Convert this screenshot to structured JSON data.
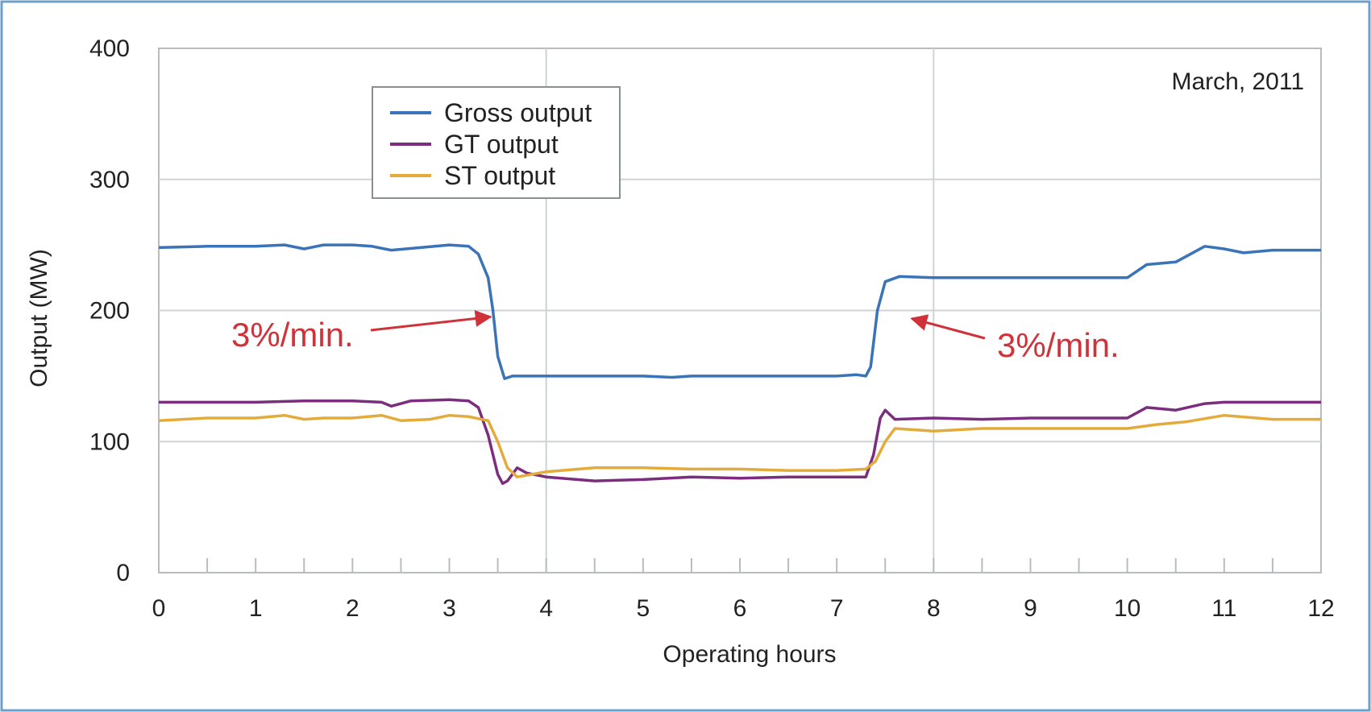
{
  "chart_data": {
    "type": "line",
    "title": "",
    "note": "March, 2011",
    "xlabel": "Operating hours",
    "ylabel": "Output (MW)",
    "xlim": [
      0,
      12
    ],
    "ylim": [
      0,
      400
    ],
    "xticks": [
      "0",
      "1",
      "2",
      "3",
      "4",
      "5",
      "6",
      "7",
      "8",
      "9",
      "10",
      "11",
      "12"
    ],
    "yticks": [
      "0",
      "100",
      "200",
      "300",
      "400"
    ],
    "grid": true,
    "legend_position": "upper-left",
    "series": [
      {
        "name": "Gross output",
        "color": "#3a73b7",
        "points": [
          [
            0,
            248
          ],
          [
            0.5,
            249
          ],
          [
            1,
            249
          ],
          [
            1.3,
            250
          ],
          [
            1.5,
            247
          ],
          [
            1.7,
            250
          ],
          [
            2,
            250
          ],
          [
            2.2,
            249
          ],
          [
            2.4,
            246
          ],
          [
            2.7,
            248
          ],
          [
            3,
            250
          ],
          [
            3.2,
            249
          ],
          [
            3.3,
            243
          ],
          [
            3.4,
            225
          ],
          [
            3.45,
            200
          ],
          [
            3.5,
            165
          ],
          [
            3.57,
            148
          ],
          [
            3.65,
            150
          ],
          [
            4,
            150
          ],
          [
            5,
            150
          ],
          [
            5.3,
            149
          ],
          [
            5.5,
            150
          ],
          [
            6,
            150
          ],
          [
            6.5,
            150
          ],
          [
            7,
            150
          ],
          [
            7.2,
            151
          ],
          [
            7.3,
            150
          ],
          [
            7.35,
            157
          ],
          [
            7.42,
            200
          ],
          [
            7.5,
            222
          ],
          [
            7.65,
            226
          ],
          [
            8,
            225
          ],
          [
            8.3,
            225
          ],
          [
            9,
            225
          ],
          [
            9.5,
            225
          ],
          [
            10,
            225
          ],
          [
            10.2,
            235
          ],
          [
            10.5,
            237
          ],
          [
            10.8,
            249
          ],
          [
            11,
            247
          ],
          [
            11.2,
            244
          ],
          [
            11.5,
            246
          ],
          [
            12,
            246
          ]
        ]
      },
      {
        "name": "GT output",
        "color": "#7b2d7e",
        "points": [
          [
            0,
            130
          ],
          [
            0.5,
            130
          ],
          [
            1,
            130
          ],
          [
            1.5,
            131
          ],
          [
            2,
            131
          ],
          [
            2.3,
            130
          ],
          [
            2.4,
            127
          ],
          [
            2.6,
            131
          ],
          [
            3,
            132
          ],
          [
            3.2,
            131
          ],
          [
            3.3,
            126
          ],
          [
            3.4,
            105
          ],
          [
            3.5,
            75
          ],
          [
            3.55,
            68
          ],
          [
            3.6,
            70
          ],
          [
            3.7,
            80
          ],
          [
            3.8,
            76
          ],
          [
            4,
            73
          ],
          [
            4.5,
            70
          ],
          [
            5,
            71
          ],
          [
            5.5,
            73
          ],
          [
            6,
            72
          ],
          [
            6.5,
            73
          ],
          [
            7,
            73
          ],
          [
            7.3,
            73
          ],
          [
            7.38,
            90
          ],
          [
            7.45,
            118
          ],
          [
            7.5,
            124
          ],
          [
            7.6,
            117
          ],
          [
            8,
            118
          ],
          [
            8.5,
            117
          ],
          [
            9,
            118
          ],
          [
            9.5,
            118
          ],
          [
            10,
            118
          ],
          [
            10.2,
            126
          ],
          [
            10.5,
            124
          ],
          [
            10.8,
            129
          ],
          [
            11,
            130
          ],
          [
            11.5,
            130
          ],
          [
            12,
            130
          ]
        ]
      },
      {
        "name": "ST output",
        "color": "#e3ab3b",
        "points": [
          [
            0,
            116
          ],
          [
            0.5,
            118
          ],
          [
            1,
            118
          ],
          [
            1.3,
            120
          ],
          [
            1.5,
            117
          ],
          [
            1.7,
            118
          ],
          [
            2,
            118
          ],
          [
            2.3,
            120
          ],
          [
            2.5,
            116
          ],
          [
            2.8,
            117
          ],
          [
            3,
            120
          ],
          [
            3.2,
            119
          ],
          [
            3.4,
            116
          ],
          [
            3.5,
            100
          ],
          [
            3.6,
            80
          ],
          [
            3.7,
            73
          ],
          [
            4,
            77
          ],
          [
            4.5,
            80
          ],
          [
            5,
            80
          ],
          [
            5.5,
            79
          ],
          [
            6,
            79
          ],
          [
            6.5,
            78
          ],
          [
            7,
            78
          ],
          [
            7.3,
            79
          ],
          [
            7.4,
            85
          ],
          [
            7.5,
            100
          ],
          [
            7.6,
            110
          ],
          [
            8,
            108
          ],
          [
            8.5,
            110
          ],
          [
            9,
            110
          ],
          [
            9.5,
            110
          ],
          [
            10,
            110
          ],
          [
            10.3,
            113
          ],
          [
            10.6,
            115
          ],
          [
            11,
            120
          ],
          [
            11.5,
            117
          ],
          [
            12,
            117
          ]
        ]
      }
    ],
    "annotations": [
      {
        "text": "3%/min.",
        "color": "#d0323a",
        "target": [
          3.45,
          205
        ]
      },
      {
        "text": "3%/min.",
        "color": "#d0323a",
        "target": [
          7.75,
          200
        ]
      }
    ]
  }
}
